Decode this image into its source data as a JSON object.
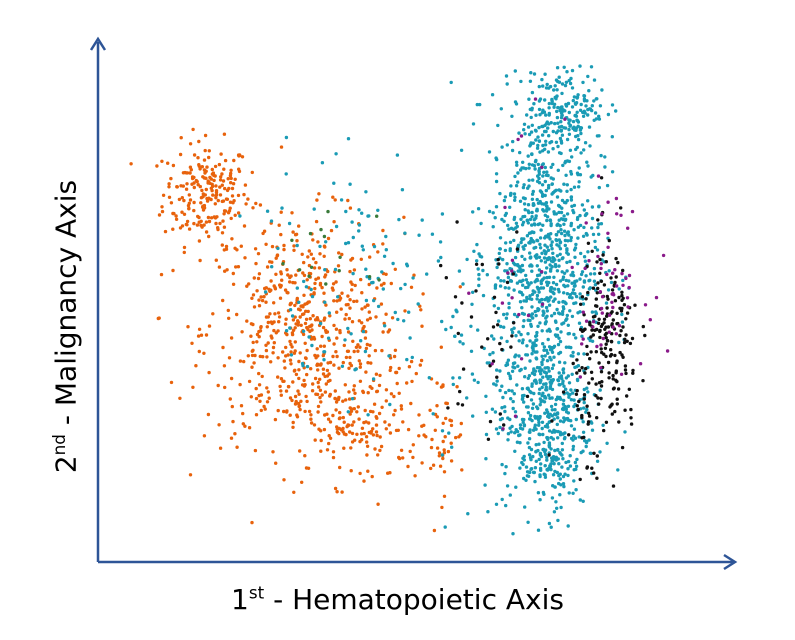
{
  "chart_data": {
    "type": "scatter",
    "xlabel": {
      "ordinal": "1",
      "suffix": "st",
      "text": " - Hematopoietic Axis"
    },
    "ylabel": {
      "ordinal": "2",
      "suffix": "nd",
      "text": " - Malignancy Axis"
    },
    "grid": false,
    "legend": "none",
    "colors": {
      "axis": "#2e5597",
      "orange": "#e8620c",
      "teal": "#1a9bb5",
      "black": "#111111",
      "magenta": "#8a1a8a",
      "green": "#3a7a3a"
    },
    "clusters": [
      {
        "color": "orange",
        "n": 220,
        "cx": 0.175,
        "cy": 0.72,
        "sx": 0.035,
        "sy": 0.05
      },
      {
        "color": "orange",
        "n": 600,
        "cx": 0.33,
        "cy": 0.45,
        "sx": 0.08,
        "sy": 0.11
      },
      {
        "color": "orange",
        "n": 160,
        "cx": 0.42,
        "cy": 0.27,
        "sx": 0.06,
        "sy": 0.06
      },
      {
        "color": "orange",
        "n": 45,
        "cx": 0.55,
        "cy": 0.25,
        "sx": 0.02,
        "sy": 0.06
      },
      {
        "color": "teal",
        "n": 900,
        "cx": 0.72,
        "cy": 0.6,
        "sx": 0.045,
        "sy": 0.16
      },
      {
        "color": "teal",
        "n": 420,
        "cx": 0.72,
        "cy": 0.27,
        "sx": 0.035,
        "sy": 0.09
      },
      {
        "color": "teal",
        "n": 160,
        "cx": 0.755,
        "cy": 0.89,
        "sx": 0.03,
        "sy": 0.035
      },
      {
        "color": "teal",
        "n": 110,
        "cx": 0.64,
        "cy": 0.45,
        "sx": 0.06,
        "sy": 0.18
      },
      {
        "color": "teal",
        "n": 80,
        "cx": 0.42,
        "cy": 0.62,
        "sx": 0.08,
        "sy": 0.1
      },
      {
        "color": "teal",
        "n": 40,
        "cx": 0.4,
        "cy": 0.4,
        "sx": 0.06,
        "sy": 0.08
      },
      {
        "color": "black",
        "n": 200,
        "cx": 0.82,
        "cy": 0.42,
        "sx": 0.025,
        "sy": 0.1
      },
      {
        "color": "black",
        "n": 40,
        "cx": 0.62,
        "cy": 0.45,
        "sx": 0.04,
        "sy": 0.1
      },
      {
        "color": "black",
        "n": 20,
        "cx": 0.78,
        "cy": 0.3,
        "sx": 0.02,
        "sy": 0.08
      },
      {
        "color": "magenta",
        "n": 60,
        "cx": 0.82,
        "cy": 0.55,
        "sx": 0.03,
        "sy": 0.08
      },
      {
        "color": "magenta",
        "n": 20,
        "cx": 0.68,
        "cy": 0.55,
        "sx": 0.03,
        "sy": 0.15
      },
      {
        "color": "green",
        "n": 15,
        "cx": 0.37,
        "cy": 0.58,
        "sx": 0.04,
        "sy": 0.05
      }
    ]
  }
}
